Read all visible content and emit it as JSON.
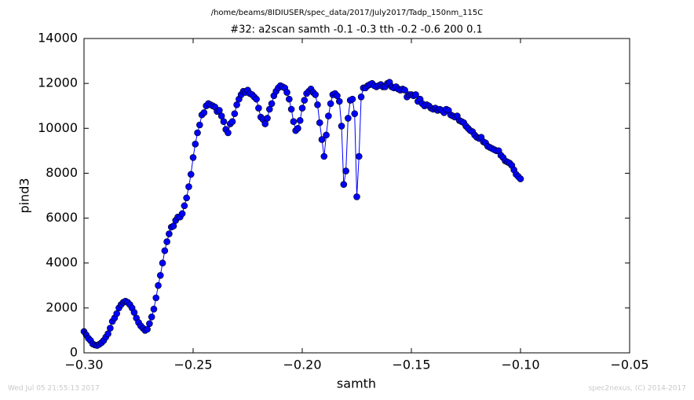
{
  "chart_data": {
    "type": "line",
    "header": "/home/beams/8IDIUSER/spec_data/2017/July2017/Tadp_150nm_115C",
    "title": "#32: a2scan  samth -0.1 -0.3  tth -0.2 -0.6  200 0.1",
    "xlabel": "samth",
    "ylabel": "pind3",
    "footer_left": "Wed Jul 05 21:55:13 2017",
    "footer_right": "spec2nexus, (C) 2014-2017",
    "xlim": [
      -0.3,
      -0.05
    ],
    "xticks": [
      {
        "value": -0.3,
        "label": "−0.30"
      },
      {
        "value": -0.25,
        "label": "−0.25"
      },
      {
        "value": -0.2,
        "label": "−0.20"
      },
      {
        "value": -0.15,
        "label": "−0.15"
      },
      {
        "value": -0.1,
        "label": "−0.10"
      },
      {
        "value": -0.05,
        "label": "−0.05"
      }
    ],
    "ylim": [
      0,
      14000
    ],
    "yticks": [
      0,
      2000,
      4000,
      6000,
      8000,
      10000,
      12000,
      14000
    ],
    "x": [
      -0.3,
      -0.299,
      -0.298,
      -0.297,
      -0.296,
      -0.295,
      -0.294,
      -0.293,
      -0.292,
      -0.291,
      -0.29,
      -0.289,
      -0.288,
      -0.287,
      -0.286,
      -0.285,
      -0.284,
      -0.283,
      -0.282,
      -0.281,
      -0.28,
      -0.279,
      -0.278,
      -0.277,
      -0.276,
      -0.275,
      -0.274,
      -0.273,
      -0.272,
      -0.271,
      -0.27,
      -0.269,
      -0.268,
      -0.267,
      -0.266,
      -0.265,
      -0.264,
      -0.263,
      -0.262,
      -0.261,
      -0.26,
      -0.259,
      -0.258,
      -0.257,
      -0.256,
      -0.255,
      -0.254,
      -0.253,
      -0.252,
      -0.251,
      -0.25,
      -0.249,
      -0.248,
      -0.247,
      -0.246,
      -0.245,
      -0.244,
      -0.243,
      -0.242,
      -0.241,
      -0.24,
      -0.239,
      -0.238,
      -0.237,
      -0.236,
      -0.235,
      -0.234,
      -0.233,
      -0.232,
      -0.231,
      -0.23,
      -0.229,
      -0.228,
      -0.227,
      -0.226,
      -0.225,
      -0.224,
      -0.223,
      -0.222,
      -0.221,
      -0.22,
      -0.219,
      -0.218,
      -0.217,
      -0.216,
      -0.215,
      -0.214,
      -0.213,
      -0.212,
      -0.211,
      -0.21,
      -0.209,
      -0.208,
      -0.207,
      -0.206,
      -0.205,
      -0.204,
      -0.203,
      -0.202,
      -0.201,
      -0.2,
      -0.199,
      -0.198,
      -0.197,
      -0.196,
      -0.195,
      -0.194,
      -0.193,
      -0.192,
      -0.191,
      -0.19,
      -0.189,
      -0.188,
      -0.187,
      -0.186,
      -0.185,
      -0.184,
      -0.183,
      -0.182,
      -0.181,
      -0.18,
      -0.179,
      -0.178,
      -0.177,
      -0.176,
      -0.175,
      -0.174,
      -0.173,
      -0.172,
      -0.171,
      -0.17,
      -0.169,
      -0.168,
      -0.167,
      -0.166,
      -0.165,
      -0.164,
      -0.163,
      -0.162,
      -0.161,
      -0.16,
      -0.159,
      -0.158,
      -0.157,
      -0.156,
      -0.155,
      -0.154,
      -0.153,
      -0.152,
      -0.151,
      -0.15,
      -0.149,
      -0.148,
      -0.147,
      -0.146,
      -0.145,
      -0.144,
      -0.143,
      -0.142,
      -0.141,
      -0.14,
      -0.139,
      -0.138,
      -0.137,
      -0.136,
      -0.135,
      -0.134,
      -0.133,
      -0.132,
      -0.131,
      -0.13,
      -0.129,
      -0.128,
      -0.127,
      -0.126,
      -0.125,
      -0.124,
      -0.123,
      -0.122,
      -0.121,
      -0.12,
      -0.119,
      -0.118,
      -0.117,
      -0.116,
      -0.115,
      -0.114,
      -0.113,
      -0.112,
      -0.111,
      -0.11,
      -0.109,
      -0.108,
      -0.107,
      -0.106,
      -0.105,
      -0.104,
      -0.103,
      -0.102,
      -0.101,
      -0.1
    ],
    "series": [
      {
        "color": "#0000ff",
        "values": [
          950,
          800,
          650,
          550,
          400,
          350,
          330,
          380,
          450,
          550,
          700,
          850,
          1100,
          1400,
          1550,
          1750,
          2000,
          2150,
          2250,
          2300,
          2250,
          2150,
          2000,
          1800,
          1550,
          1350,
          1200,
          1100,
          1000,
          1050,
          1300,
          1600,
          1950,
          2450,
          3000,
          3450,
          4000,
          4550,
          4950,
          5300,
          5600,
          5650,
          5900,
          6050,
          6050,
          6200,
          6550,
          6900,
          7400,
          7950,
          8700,
          9300,
          9800,
          10150,
          10600,
          10700,
          11000,
          11100,
          11050,
          11000,
          10950,
          10750,
          10800,
          10550,
          10300,
          9950,
          9800,
          10200,
          10300,
          10650,
          11050,
          11300,
          11500,
          11650,
          11600,
          11700,
          11550,
          11500,
          11400,
          11300,
          10900,
          10500,
          10400,
          10200,
          10450,
          10850,
          11100,
          11450,
          11650,
          11800,
          11900,
          11850,
          11800,
          11600,
          11300,
          10850,
          10300,
          9900,
          10000,
          10350,
          10900,
          11250,
          11550,
          11650,
          11750,
          11600,
          11500,
          11050,
          10250,
          9500,
          8750,
          9700,
          10550,
          11100,
          11500,
          11550,
          11450,
          11200,
          10100,
          7500,
          8100,
          10450,
          11250,
          11300,
          10650,
          6950,
          8750,
          11400,
          11800,
          11800,
          11900,
          11950,
          12000,
          11900,
          11850,
          11900,
          11950,
          11850,
          11850,
          12000,
          12050,
          11850,
          11800,
          11850,
          11750,
          11700,
          11750,
          11700,
          11400,
          11500,
          11500,
          11450,
          11500,
          11200,
          11300,
          11100,
          11000,
          11050,
          11000,
          10900,
          10850,
          10900,
          10800,
          10850,
          10800,
          10700,
          10850,
          10800,
          10600,
          10550,
          10500,
          10550,
          10350,
          10300,
          10250,
          10100,
          10000,
          9900,
          9850,
          9700,
          9600,
          9550,
          9600,
          9400,
          9350,
          9200,
          9150,
          9100,
          9050,
          9000,
          9000,
          8800,
          8700,
          8550,
          8500,
          8450,
          8350,
          8150,
          7950,
          7850,
          7750
        ]
      }
    ]
  }
}
